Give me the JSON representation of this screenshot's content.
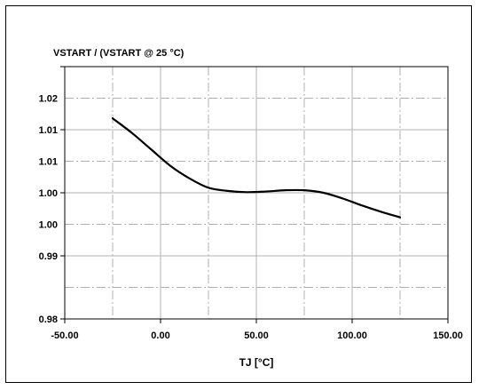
{
  "chart_data": {
    "type": "line",
    "title": "",
    "ylabel": "VSTART / (VSTART @ 25 °C)",
    "xlabel": "TJ [°C]",
    "xlim": [
      -50,
      150
    ],
    "ylim": [
      0.98,
      1.02
    ],
    "x_ticks": [
      -50,
      0,
      50,
      100,
      150
    ],
    "x_tick_labels": [
      "-50.00",
      "0.00",
      "50.00",
      "100.00",
      "150.00"
    ],
    "y_ticks": [
      0.98,
      0.99,
      1.0,
      1.01,
      1.02
    ],
    "y_tick_labels": [
      "0.98",
      "0.99",
      "1.00",
      "1.00",
      "1.01",
      "1.01",
      "1.02"
    ],
    "y_label_values": [
      0.98,
      0.99,
      0.995,
      1.0,
      1.005,
      1.01,
      1.015
    ],
    "grid": {
      "solid_y": [
        0.98,
        0.99,
        1.0,
        1.01,
        1.02
      ],
      "dashed_y": [
        0.985,
        0.995,
        1.005,
        1.015
      ],
      "dashed_x": [
        -25,
        25,
        75,
        125
      ],
      "solid_x": [
        0,
        50,
        100
      ]
    },
    "legend": "none",
    "series": [
      {
        "x": [
          -25,
          -15,
          -5,
          5,
          15,
          25,
          35,
          45,
          55,
          65,
          75,
          85,
          95,
          105,
          115,
          125
        ],
        "y": [
          1.0118,
          1.0095,
          1.0069,
          1.0043,
          1.0023,
          1.0008,
          1.0003,
          1.0001,
          1.0002,
          1.0004,
          1.0004,
          1.0,
          0.9991,
          0.998,
          0.997,
          0.9961
        ]
      }
    ],
    "colors": {
      "line": "#000000",
      "grid": "#b0b0b0",
      "axis": "#000000"
    }
  }
}
